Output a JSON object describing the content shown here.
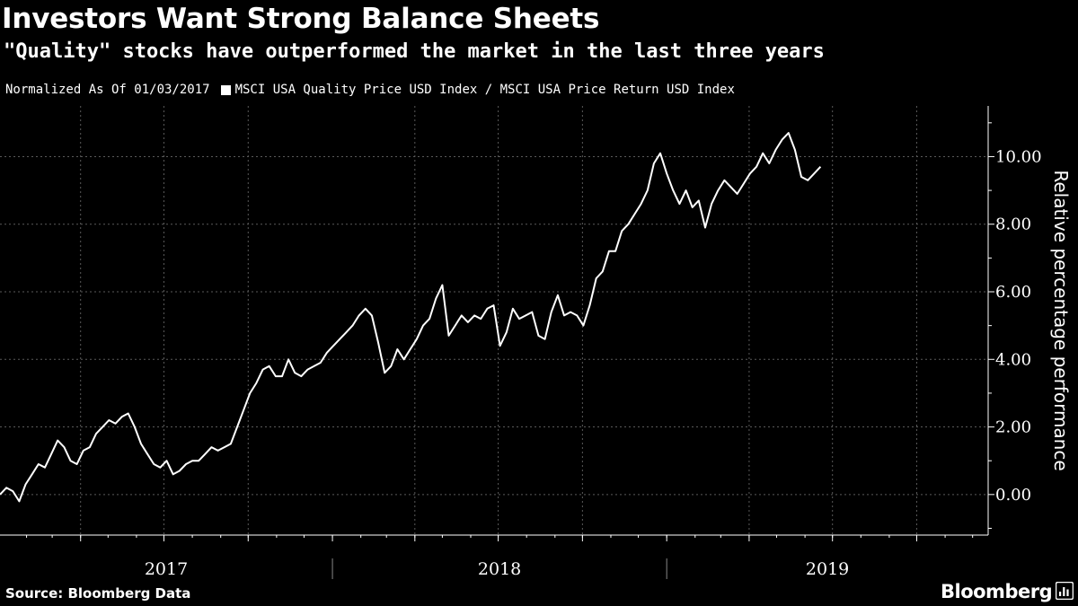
{
  "header": {
    "title": "Investors Want Strong Balance Sheets",
    "subtitle": "\"Quality\" stocks have outperformed the market in the last three years",
    "note": "Normalized As Of 01/03/2017"
  },
  "footer": {
    "source": "Source: Bloomberg Data",
    "brand": "Bloomberg"
  },
  "colors": {
    "background": "#000000",
    "line": "#ffffff",
    "grid": "#5a5a5a"
  },
  "chart_data": {
    "type": "line",
    "title": "Investors Want Strong Balance Sheets",
    "subtitle": "\"Quality\" stocks have outperformed the market in the last three years",
    "ylabel": "Relative percentage performance",
    "xlabel": "",
    "x_axis_labels": [
      "2017",
      "2018",
      "2019"
    ],
    "y_ticks": [
      0,
      2,
      4,
      6,
      8,
      10
    ],
    "y_tick_labels": [
      "0.00",
      "2.00",
      "4.00",
      "6.00",
      "8.00",
      "10.00"
    ],
    "ylim": [
      -1.2,
      11.5
    ],
    "xlim": [
      "2017-01-03",
      "2019-12-18"
    ],
    "grid": true,
    "legend_position": "top-left",
    "series": [
      {
        "name": "MSCI USA Quality Price USD Index / MSCI USA Price Return USD Index",
        "color": "#ffffff",
        "points": [
          [
            "2017-01-03",
            0.0
          ],
          [
            "2017-01-10",
            0.2
          ],
          [
            "2017-01-17",
            0.1
          ],
          [
            "2017-01-24",
            -0.2
          ],
          [
            "2017-01-31",
            0.3
          ],
          [
            "2017-02-07",
            0.6
          ],
          [
            "2017-02-14",
            0.9
          ],
          [
            "2017-02-21",
            0.8
          ],
          [
            "2017-02-28",
            1.2
          ],
          [
            "2017-03-07",
            1.6
          ],
          [
            "2017-03-14",
            1.4
          ],
          [
            "2017-03-21",
            1.0
          ],
          [
            "2017-03-28",
            0.9
          ],
          [
            "2017-04-04",
            1.3
          ],
          [
            "2017-04-11",
            1.4
          ],
          [
            "2017-04-18",
            1.8
          ],
          [
            "2017-04-25",
            2.0
          ],
          [
            "2017-05-02",
            2.2
          ],
          [
            "2017-05-09",
            2.1
          ],
          [
            "2017-05-16",
            2.3
          ],
          [
            "2017-05-23",
            2.4
          ],
          [
            "2017-05-30",
            2.0
          ],
          [
            "2017-06-06",
            1.5
          ],
          [
            "2017-06-13",
            1.2
          ],
          [
            "2017-06-20",
            0.9
          ],
          [
            "2017-06-27",
            0.8
          ],
          [
            "2017-07-04",
            1.0
          ],
          [
            "2017-07-11",
            0.6
          ],
          [
            "2017-07-18",
            0.7
          ],
          [
            "2017-07-25",
            0.9
          ],
          [
            "2017-08-01",
            1.0
          ],
          [
            "2017-08-08",
            1.0
          ],
          [
            "2017-08-15",
            1.2
          ],
          [
            "2017-08-22",
            1.4
          ],
          [
            "2017-08-29",
            1.3
          ],
          [
            "2017-09-05",
            1.4
          ],
          [
            "2017-09-12",
            1.5
          ],
          [
            "2017-09-19",
            2.0
          ],
          [
            "2017-09-26",
            2.5
          ],
          [
            "2017-10-03",
            3.0
          ],
          [
            "2017-10-10",
            3.3
          ],
          [
            "2017-10-17",
            3.7
          ],
          [
            "2017-10-24",
            3.8
          ],
          [
            "2017-10-31",
            3.5
          ],
          [
            "2017-11-07",
            3.5
          ],
          [
            "2017-11-14",
            4.0
          ],
          [
            "2017-11-21",
            3.6
          ],
          [
            "2017-11-28",
            3.5
          ],
          [
            "2017-12-05",
            3.7
          ],
          [
            "2017-12-12",
            3.8
          ],
          [
            "2017-12-19",
            3.9
          ],
          [
            "2017-12-26",
            4.2
          ],
          [
            "2018-01-02",
            4.4
          ],
          [
            "2018-01-09",
            4.6
          ],
          [
            "2018-01-16",
            4.8
          ],
          [
            "2018-01-23",
            5.0
          ],
          [
            "2018-01-30",
            5.3
          ],
          [
            "2018-02-06",
            5.5
          ],
          [
            "2018-02-13",
            5.3
          ],
          [
            "2018-02-20",
            4.5
          ],
          [
            "2018-02-27",
            3.6
          ],
          [
            "2018-03-06",
            3.8
          ],
          [
            "2018-03-13",
            4.3
          ],
          [
            "2018-03-20",
            4.0
          ],
          [
            "2018-03-27",
            4.3
          ],
          [
            "2018-04-03",
            4.6
          ],
          [
            "2018-04-10",
            5.0
          ],
          [
            "2018-04-17",
            5.2
          ],
          [
            "2018-04-24",
            5.8
          ],
          [
            "2018-05-01",
            6.2
          ],
          [
            "2018-05-08",
            4.7
          ],
          [
            "2018-05-15",
            5.0
          ],
          [
            "2018-05-22",
            5.3
          ],
          [
            "2018-05-29",
            5.1
          ],
          [
            "2018-06-05",
            5.3
          ],
          [
            "2018-06-12",
            5.2
          ],
          [
            "2018-06-19",
            5.5
          ],
          [
            "2018-06-26",
            5.6
          ],
          [
            "2018-07-03",
            4.4
          ],
          [
            "2018-07-10",
            4.8
          ],
          [
            "2018-07-17",
            5.5
          ],
          [
            "2018-07-24",
            5.2
          ],
          [
            "2018-07-31",
            5.3
          ],
          [
            "2018-08-07",
            5.4
          ],
          [
            "2018-08-14",
            4.7
          ],
          [
            "2018-08-21",
            4.6
          ],
          [
            "2018-08-28",
            5.4
          ],
          [
            "2018-09-04",
            5.9
          ],
          [
            "2018-09-11",
            5.3
          ],
          [
            "2018-09-18",
            5.4
          ],
          [
            "2018-09-25",
            5.3
          ],
          [
            "2018-10-02",
            5.0
          ],
          [
            "2018-10-09",
            5.6
          ],
          [
            "2018-10-16",
            6.4
          ],
          [
            "2018-10-23",
            6.6
          ],
          [
            "2018-10-30",
            7.2
          ],
          [
            "2018-11-06",
            7.2
          ],
          [
            "2018-11-13",
            7.8
          ],
          [
            "2018-11-20",
            8.0
          ],
          [
            "2018-11-27",
            8.3
          ],
          [
            "2018-12-04",
            8.6
          ],
          [
            "2018-12-11",
            9.0
          ],
          [
            "2018-12-18",
            9.8
          ],
          [
            "2018-12-25",
            10.1
          ],
          [
            "2019-01-01",
            9.5
          ],
          [
            "2019-01-08",
            9.0
          ],
          [
            "2019-01-15",
            8.6
          ],
          [
            "2019-01-22",
            9.0
          ],
          [
            "2019-01-29",
            8.5
          ],
          [
            "2019-02-05",
            8.7
          ],
          [
            "2019-02-12",
            7.9
          ],
          [
            "2019-02-19",
            8.6
          ],
          [
            "2019-02-26",
            9.0
          ],
          [
            "2019-03-05",
            9.3
          ],
          [
            "2019-03-12",
            9.1
          ],
          [
            "2019-03-19",
            8.9
          ],
          [
            "2019-03-26",
            9.2
          ],
          [
            "2019-04-02",
            9.5
          ],
          [
            "2019-04-09",
            9.7
          ],
          [
            "2019-04-16",
            10.1
          ],
          [
            "2019-04-23",
            9.8
          ],
          [
            "2019-04-30",
            10.2
          ],
          [
            "2019-05-07",
            10.5
          ],
          [
            "2019-05-14",
            10.7
          ],
          [
            "2019-05-21",
            10.2
          ],
          [
            "2019-05-28",
            9.4
          ],
          [
            "2019-06-04",
            9.3
          ],
          [
            "2019-06-11",
            9.5
          ],
          [
            "2019-06-18",
            9.7
          ]
        ]
      }
    ]
  }
}
